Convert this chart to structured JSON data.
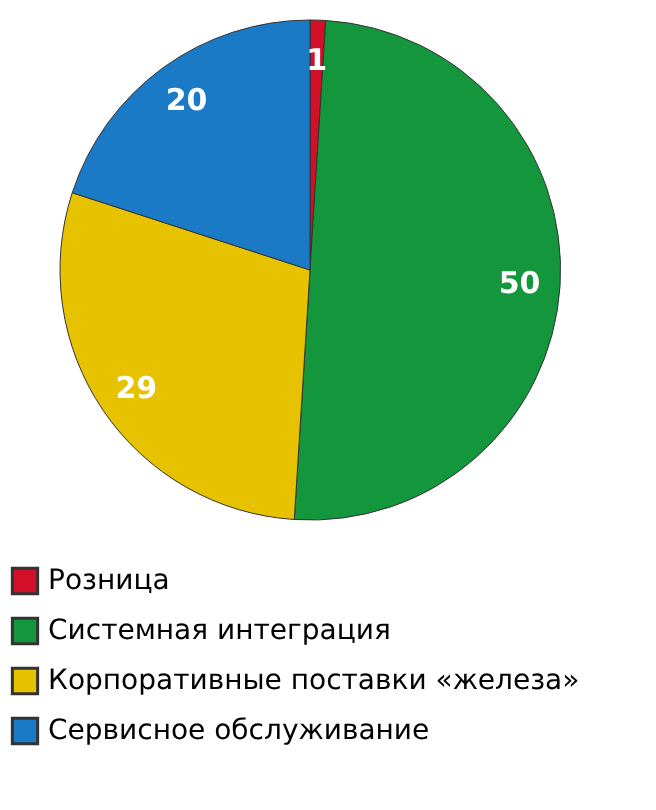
{
  "chart_data": {
    "type": "pie",
    "categories": [
      "Розница",
      "Системная интеграция",
      "Корпоративные поставки «железа»",
      "Сервисное обслуживание"
    ],
    "values": [
      1,
      50,
      29,
      20
    ],
    "colors": [
      "#d2102a",
      "#14963c",
      "#e6c200",
      "#1a7ac6"
    ],
    "data_labels": true,
    "legend": "bottom"
  }
}
